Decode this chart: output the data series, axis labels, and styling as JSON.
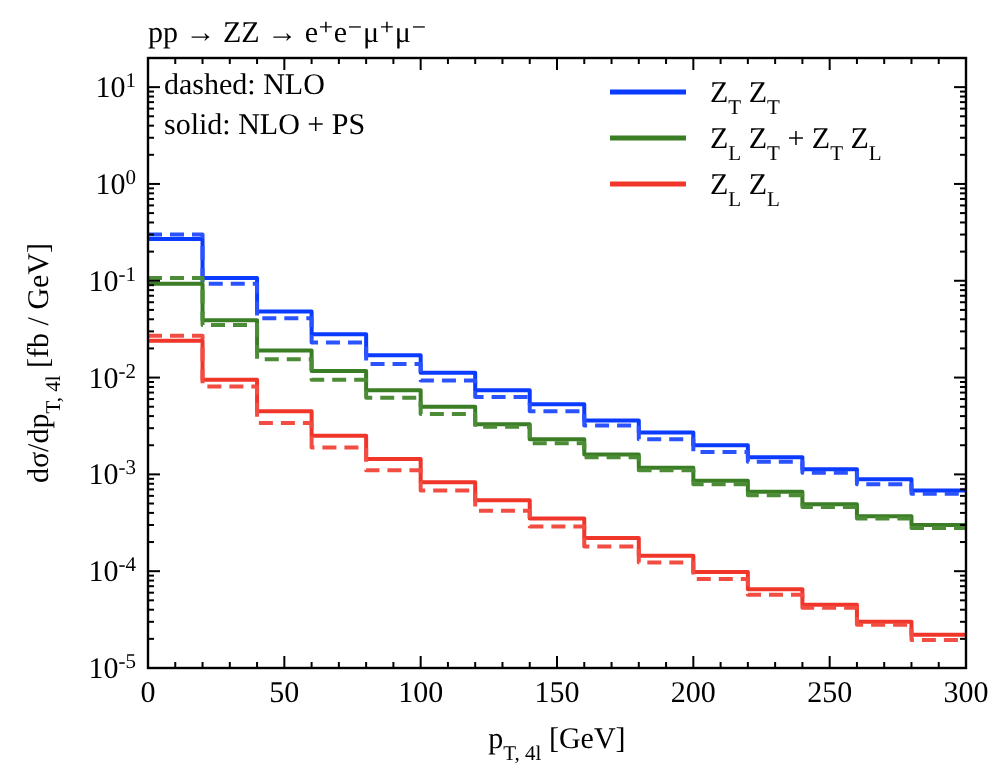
{
  "chart_data": {
    "type": "histogram",
    "title": "pp → ZZ → e⁺e⁻μ⁺μ⁻",
    "xlabel": "p$_{T, 4l}$ [GeV]",
    "ylabel": "dσ/dp$_{T, 4l}$ [fb / GeV]",
    "annotations": [
      "dashed: NLO",
      "solid: NLO + PS"
    ],
    "bins": [
      0,
      20,
      40,
      60,
      80,
      100,
      120,
      140,
      160,
      180,
      200,
      220,
      240,
      260,
      280,
      300
    ],
    "series": [
      {
        "name": "Z$_{T}$ Z$_{T}$",
        "color": "#0b3bff",
        "line_style": "solid",
        "values": [
          0.27,
          0.107,
          0.048,
          0.028,
          0.017,
          0.0112,
          0.0074,
          0.0053,
          0.0036,
          0.0027,
          0.002,
          0.0015,
          0.00113,
          0.00089,
          0.00068
        ]
      },
      {
        "name": "Z$_{L}$ Z$_{T}$ + Z$_{T}$ Z$_{L}$",
        "color": "#3a7d24",
        "line_style": "solid",
        "values": [
          0.093,
          0.039,
          0.019,
          0.0117,
          0.0074,
          0.005,
          0.0033,
          0.0023,
          0.0016,
          0.00117,
          0.00086,
          0.00066,
          0.00049,
          0.00037,
          0.0003
        ]
      },
      {
        "name": "Z$_{L}$ Z$_{L}$",
        "color": "#f0352a",
        "line_style": "solid",
        "values": [
          0.024,
          0.0095,
          0.0045,
          0.0025,
          0.00144,
          0.00083,
          0.00054,
          0.00035,
          0.00022,
          0.000144,
          9.8e-05,
          6.5e-05,
          4.5e-05,
          3e-05,
          2.2e-05
        ]
      },
      {
        "color": "#2a52ff",
        "line_style": "dashed",
        "values": [
          0.3,
          0.093,
          0.041,
          0.023,
          0.0138,
          0.0093,
          0.0063,
          0.0045,
          0.0032,
          0.0023,
          0.0017,
          0.00135,
          0.00104,
          0.00079,
          0.00063
        ]
      },
      {
        "color": "#4c8c36",
        "line_style": "dashed",
        "values": [
          0.107,
          0.035,
          0.0155,
          0.0095,
          0.0062,
          0.0042,
          0.0031,
          0.0021,
          0.0015,
          0.0011,
          0.00079,
          0.00061,
          0.00046,
          0.00035,
          0.00028
        ]
      },
      {
        "color": "#f24d42",
        "line_style": "dashed",
        "values": [
          0.027,
          0.0081,
          0.0034,
          0.0019,
          0.0011,
          0.00068,
          0.00042,
          0.00029,
          0.00018,
          0.000123,
          8.3e-05,
          5.7e-05,
          4.2e-05,
          2.8e-05,
          1.95e-05
        ]
      }
    ],
    "log": "y",
    "legend": "top right",
    "grid": false,
    "xlim": [
      0,
      300
    ],
    "xticks": [
      0,
      {
        "value": 10,
        "label": null
      },
      {
        "value": 20,
        "label": null
      },
      {
        "value": 30,
        "label": null
      },
      {
        "value": 40,
        "label": null
      },
      50,
      {
        "value": 60,
        "label": null
      },
      {
        "value": 70,
        "label": null
      },
      {
        "value": 80,
        "label": null
      },
      {
        "value": 90,
        "label": null
      },
      100,
      {
        "value": 110,
        "label": null
      },
      {
        "value": 120,
        "label": null
      },
      {
        "value": 130,
        "label": null
      },
      {
        "value": 140,
        "label": null
      },
      150,
      {
        "value": 160,
        "label": null
      },
      {
        "value": 170,
        "label": null
      },
      {
        "value": 180,
        "label": null
      },
      {
        "value": 190,
        "label": null
      },
      200,
      {
        "value": 210,
        "label": null
      },
      {
        "value": 220,
        "label": null
      },
      {
        "value": 230,
        "label": null
      },
      {
        "value": 240,
        "label": null
      },
      250,
      {
        "value": 260,
        "label": null
      },
      {
        "value": 270,
        "label": null
      },
      {
        "value": 280,
        "label": null
      },
      {
        "value": 290,
        "label": null
      },
      300
    ],
    "ylim": [
      1e-05,
      20
    ],
    "yticks": [
      {
        "value": 1e-05,
        "label": "10$^{-5}$"
      },
      {
        "value": 2e-05,
        "label": null
      },
      {
        "value": 3e-05,
        "label": null
      },
      {
        "value": 4e-05,
        "label": null
      },
      {
        "value": 5e-05,
        "label": null
      },
      {
        "value": 6e-05,
        "label": null
      },
      {
        "value": 7e-05,
        "label": null
      },
      {
        "value": 8e-05,
        "label": null
      },
      {
        "value": 9e-05,
        "label": null
      },
      {
        "value": 0.0001,
        "label": "10$^{-4}$"
      },
      {
        "value": 0.0002,
        "label": null
      },
      {
        "value": 0.0003,
        "label": null
      },
      {
        "value": 0.0004,
        "label": null
      },
      {
        "value": 0.0005,
        "label": null
      },
      {
        "value": 0.0006,
        "label": null
      },
      {
        "value": 0.0007,
        "label": null
      },
      {
        "value": 0.0008,
        "label": null
      },
      {
        "value": 0.0009,
        "label": null
      },
      {
        "value": 0.001,
        "label": "10$^{-3}$"
      },
      {
        "value": 0.002,
        "label": null
      },
      {
        "value": 0.003,
        "label": null
      },
      {
        "value": 0.004,
        "label": null
      },
      {
        "value": 0.005,
        "label": null
      },
      {
        "value": 0.006,
        "label": null
      },
      {
        "value": 0.007,
        "label": null
      },
      {
        "value": 0.008,
        "label": null
      },
      {
        "value": 0.009,
        "label": null
      },
      {
        "value": 0.01,
        "label": "10$^{-2}$"
      },
      {
        "value": 0.02,
        "label": null
      },
      {
        "value": 0.03,
        "label": null
      },
      {
        "value": 0.04,
        "label": null
      },
      {
        "value": 0.05,
        "label": null
      },
      {
        "value": 0.06,
        "label": null
      },
      {
        "value": 0.07,
        "label": null
      },
      {
        "value": 0.08,
        "label": null
      },
      {
        "value": 0.09,
        "label": null
      },
      {
        "value": 0.1,
        "label": "10$^{-1}$"
      },
      {
        "value": 0.2,
        "label": null
      },
      {
        "value": 0.3,
        "label": null
      },
      {
        "value": 0.4,
        "label": null
      },
      {
        "value": 0.5,
        "label": null
      },
      {
        "value": 0.6,
        "label": null
      },
      {
        "value": 0.7,
        "label": null
      },
      {
        "value": 0.8,
        "label": null
      },
      {
        "value": 0.9,
        "label": null
      },
      {
        "value": 1,
        "label": "10$^{0}$"
      },
      {
        "value": 2,
        "label": null
      },
      {
        "value": 3,
        "label": null
      },
      {
        "value": 4,
        "label": null
      },
      {
        "value": 5,
        "label": null
      },
      {
        "value": 6,
        "label": null
      },
      {
        "value": 7,
        "label": null
      },
      {
        "value": 8,
        "label": null
      },
      {
        "value": 9,
        "label": null
      },
      {
        "value": 10,
        "label": "10$^{1}$"
      }
    ]
  }
}
